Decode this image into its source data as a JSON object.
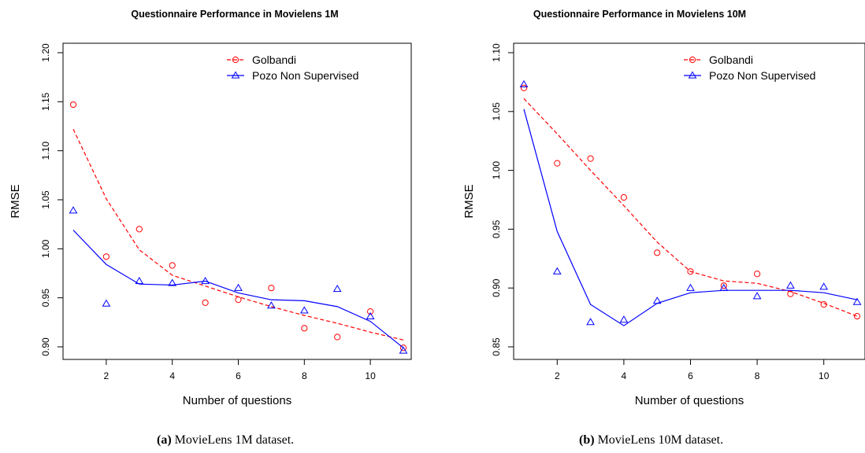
{
  "chart_data": [
    {
      "type": "line",
      "title": "Questionnaire Performance in Movielens 1M",
      "xlabel": "Number of questions",
      "ylabel": "RMSE",
      "xlim": [
        1,
        11
      ],
      "ylim": [
        0.9,
        1.2
      ],
      "xticks": [
        2,
        4,
        6,
        8,
        10
      ],
      "yticks": [
        0.9,
        0.95,
        1.0,
        1.05,
        1.1,
        1.15,
        1.2
      ],
      "ytick_labels": [
        "0.90",
        "0.95",
        "1.00",
        "1.05",
        "1.10",
        "1.15",
        "1.20"
      ],
      "legend_position": "top-right",
      "series": [
        {
          "name": "Golbandi",
          "color": "#ff0000",
          "marker": "circle",
          "points_x": [
            1,
            2,
            3,
            4,
            5,
            6,
            7,
            8,
            9,
            10,
            11
          ],
          "points_y": [
            1.147,
            0.992,
            1.02,
            0.983,
            0.945,
            0.948,
            0.96,
            0.919,
            0.91,
            0.936,
            0.899
          ],
          "line_style": "dashed",
          "smooth_x": [
            1,
            2,
            3,
            4,
            5,
            6,
            7,
            8,
            9,
            10,
            11
          ],
          "smooth_y": [
            1.122,
            1.051,
            0.999,
            0.973,
            0.962,
            0.951,
            0.941,
            0.932,
            0.924,
            0.915,
            0.907
          ]
        },
        {
          "name": "Pozo Non Supervised",
          "color": "#0000ff",
          "marker": "triangle",
          "points_x": [
            1,
            2,
            3,
            4,
            5,
            6,
            7,
            8,
            9,
            10,
            11
          ],
          "points_y": [
            1.039,
            0.944,
            0.967,
            0.965,
            0.967,
            0.96,
            0.942,
            0.937,
            0.959,
            0.931,
            0.896
          ],
          "line_style": "solid",
          "smooth_x": [
            1,
            2,
            3,
            4,
            5,
            6,
            7,
            8,
            9,
            10,
            11
          ],
          "smooth_y": [
            1.019,
            0.984,
            0.964,
            0.963,
            0.967,
            0.955,
            0.948,
            0.947,
            0.941,
            0.926,
            0.899
          ]
        }
      ]
    },
    {
      "type": "line",
      "title": "Questionnaire Performance in Movielens 10M",
      "xlabel": "Number of questions",
      "ylabel": "RMSE",
      "xlim": [
        1,
        11
      ],
      "ylim": [
        0.85,
        1.1
      ],
      "xticks": [
        2,
        4,
        6,
        8,
        10
      ],
      "yticks": [
        0.85,
        0.9,
        0.95,
        1.0,
        1.05,
        1.1
      ],
      "ytick_labels": [
        "0.85",
        "0.90",
        "0.95",
        "1.00",
        "1.05",
        "1.10"
      ],
      "legend_position": "top-right",
      "series": [
        {
          "name": "Golbandi",
          "color": "#ff0000",
          "marker": "circle",
          "points_x": [
            1,
            2,
            3,
            4,
            5,
            6,
            7,
            8,
            9,
            10,
            11
          ],
          "points_y": [
            1.07,
            1.006,
            1.01,
            0.977,
            0.93,
            0.914,
            0.902,
            0.912,
            0.895,
            0.886,
            0.876
          ],
          "line_style": "dashed",
          "smooth_x": [
            1,
            2,
            3,
            4,
            5,
            6,
            7,
            8,
            9,
            10,
            11
          ],
          "smooth_y": [
            1.061,
            1.031,
            1.0,
            0.97,
            0.939,
            0.914,
            0.906,
            0.904,
            0.897,
            0.887,
            0.876
          ]
        },
        {
          "name": "Pozo Non Supervised",
          "color": "#0000ff",
          "marker": "triangle",
          "points_x": [
            1,
            2,
            3,
            4,
            5,
            6,
            7,
            8,
            9,
            10,
            11
          ],
          "points_y": [
            1.073,
            0.914,
            0.871,
            0.873,
            0.889,
            0.9,
            0.9,
            0.893,
            0.902,
            0.901,
            0.888
          ],
          "line_style": "solid",
          "smooth_x": [
            1,
            2,
            3,
            4,
            5,
            6,
            7,
            8,
            9,
            10,
            11
          ],
          "smooth_y": [
            1.052,
            0.948,
            0.886,
            0.868,
            0.887,
            0.896,
            0.898,
            0.898,
            0.898,
            0.896,
            0.89
          ]
        }
      ]
    }
  ],
  "captions": [
    {
      "label": "(a)",
      "text": " MovieLens 1M dataset."
    },
    {
      "label": "(b)",
      "text": " MovieLens 10M dataset."
    }
  ]
}
